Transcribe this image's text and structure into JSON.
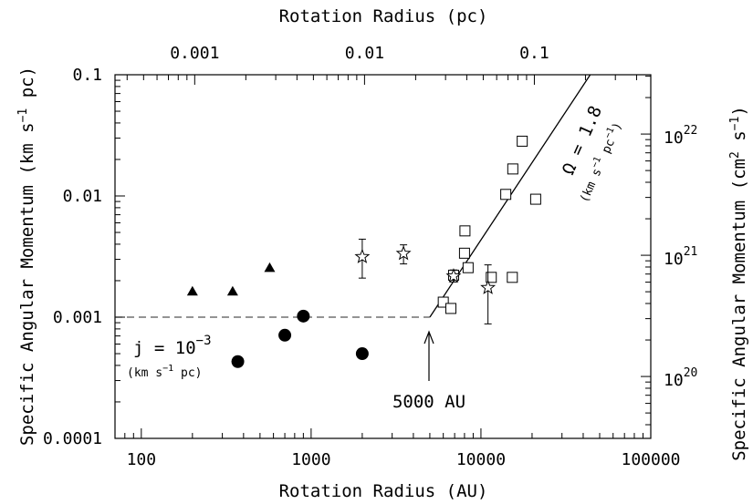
{
  "chart_data": {
    "type": "scatter",
    "xlabel": "Rotation Radius (AU)",
    "x2label": "Rotation Radius (pc)",
    "ylabel": "Specific Angular Momentum (km s",
    "ylabel_sup": "−1",
    "ylabel_tail": " pc)",
    "y2label_head": "Specific Angular Momentum (cm",
    "y2label_sup1": "2",
    "y2label_mid": " s",
    "y2label_sup2": "−1",
    "y2label_tail": ")",
    "x_scale": "log",
    "y_scale": "log",
    "xlim": [
      70,
      100000
    ],
    "ylim": [
      0.0001,
      0.1
    ],
    "x_ticks": [
      {
        "value": 100,
        "label": "100"
      },
      {
        "value": 1000,
        "label": "1000"
      },
      {
        "value": 10000,
        "label": "10000"
      },
      {
        "value": 100000,
        "label": "100000"
      }
    ],
    "y_ticks": [
      {
        "value": 0.0001,
        "label": "0.0001"
      },
      {
        "value": 0.001,
        "label": "0.001"
      },
      {
        "value": 0.01,
        "label": "0.01"
      },
      {
        "value": 0.1,
        "label": "0.1"
      }
    ],
    "x2_ticks": [
      {
        "value": 0.001,
        "label": "0.001"
      },
      {
        "value": 0.01,
        "label": "0.01"
      },
      {
        "value": 0.1,
        "label": "0.1"
      }
    ],
    "y2_ticks": [
      {
        "value": 1e+20,
        "base": "10",
        "exp": "20"
      },
      {
        "value": 1e+21,
        "base": "10",
        "exp": "21"
      },
      {
        "value": 1e+22,
        "base": "10",
        "exp": "22"
      }
    ],
    "series": [
      {
        "marker": "triangle",
        "points": [
          {
            "x": 200,
            "y": 0.00163
          },
          {
            "x": 345,
            "y": 0.00163
          },
          {
            "x": 570,
            "y": 0.00255
          }
        ]
      },
      {
        "marker": "filled-circle",
        "points": [
          {
            "x": 370,
            "y": 0.00043
          },
          {
            "x": 700,
            "y": 0.00071
          },
          {
            "x": 900,
            "y": 0.00102
          },
          {
            "x": 2000,
            "y": 0.0005
          }
        ]
      },
      {
        "marker": "open-square",
        "points": [
          {
            "x": 6000,
            "y": 0.00133
          },
          {
            "x": 6650,
            "y": 0.00118
          },
          {
            "x": 6900,
            "y": 0.00222
          },
          {
            "x": 8000,
            "y": 0.00337
          },
          {
            "x": 8050,
            "y": 0.00515
          },
          {
            "x": 8400,
            "y": 0.00256
          },
          {
            "x": 11500,
            "y": 0.00213
          },
          {
            "x": 14000,
            "y": 0.0103
          },
          {
            "x": 15300,
            "y": 0.00213
          },
          {
            "x": 15400,
            "y": 0.0167
          },
          {
            "x": 17500,
            "y": 0.0283
          },
          {
            "x": 21000,
            "y": 0.0094
          }
        ]
      },
      {
        "marker": "open-star",
        "points": [
          {
            "x": 2000,
            "y": 0.00315,
            "err_low": 0.0021,
            "err_high": 0.0044
          },
          {
            "x": 3500,
            "y": 0.00335,
            "err_low": 0.00275,
            "err_high": 0.00395
          },
          {
            "x": 6900,
            "y": 0.00218,
            "err_low": 0.00195,
            "err_high": 0.00245
          },
          {
            "x": 11000,
            "y": 0.00175,
            "err_low": 0.00088,
            "err_high": 0.0027
          }
        ]
      }
    ],
    "lines": [
      {
        "style": "dashed",
        "points": [
          {
            "x": 70,
            "y": 0.001
          },
          {
            "x": 5000,
            "y": 0.001
          }
        ]
      },
      {
        "style": "solid",
        "points": [
          {
            "x": 5000,
            "y": 0.001
          },
          {
            "x": 44000,
            "y": 0.1
          }
        ]
      }
    ],
    "annotations": {
      "j_text": "j = 10",
      "j_sup": "−3",
      "j_units": "(km s",
      "j_units_sup": "−1",
      "j_units_tail": " pc)",
      "arrow_label": "5000 AU",
      "omega_text": "Ω = 1.8",
      "omega_units": "(km s",
      "omega_units_sup": "−1",
      "omega_units_mid": " pc",
      "omega_units_sup2": "−1",
      "omega_units_tail": ")"
    }
  }
}
